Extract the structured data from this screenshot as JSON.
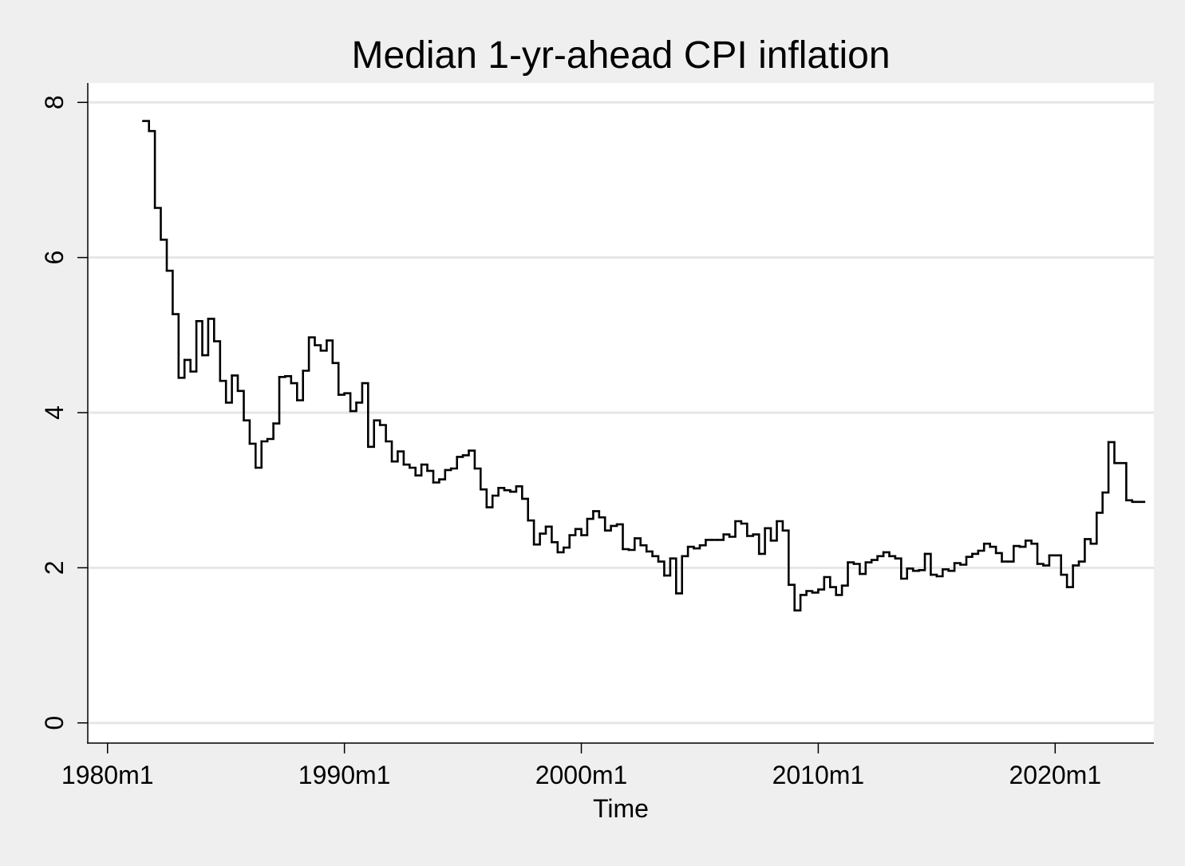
{
  "chart_data": {
    "type": "line",
    "title": "Median 1-yr-ahead CPI inflation",
    "xlabel": "Time",
    "ylabel": "",
    "x_ticks": [
      "1980m1",
      "1990m1",
      "2000m1",
      "2010m1",
      "2020m1"
    ],
    "y_ticks": [
      "0",
      "2",
      "4",
      "6",
      "8"
    ],
    "xlim": [
      "1979m3",
      "2024m3"
    ],
    "ylim": [
      -0.25,
      8.25
    ],
    "grid": "horizontal",
    "line_style": "step",
    "series": [
      {
        "color": "#000000",
        "points": [
          [
            "1981m7",
            7.76
          ],
          [
            "1981m10",
            7.63
          ],
          [
            "1982m1",
            6.64
          ],
          [
            "1982m4",
            6.23
          ],
          [
            "1982m7",
            5.83
          ],
          [
            "1982m10",
            5.27
          ],
          [
            "1983m1",
            4.45
          ],
          [
            "1983m4",
            4.68
          ],
          [
            "1983m7",
            4.53
          ],
          [
            "1983m10",
            5.18
          ],
          [
            "1984m1",
            4.74
          ],
          [
            "1984m4",
            5.21
          ],
          [
            "1984m7",
            4.92
          ],
          [
            "1984m10",
            4.41
          ],
          [
            "1985m1",
            4.13
          ],
          [
            "1985m4",
            4.48
          ],
          [
            "1985m7",
            4.28
          ],
          [
            "1985m10",
            3.9
          ],
          [
            "1986m1",
            3.6
          ],
          [
            "1986m4",
            3.29
          ],
          [
            "1986m7",
            3.63
          ],
          [
            "1986m10",
            3.66
          ],
          [
            "1987m1",
            3.86
          ],
          [
            "1987m4",
            4.46
          ],
          [
            "1987m7",
            4.47
          ],
          [
            "1987m10",
            4.38
          ],
          [
            "1988m1",
            4.16
          ],
          [
            "1988m4",
            4.54
          ],
          [
            "1988m7",
            4.97
          ],
          [
            "1988m10",
            4.87
          ],
          [
            "1989m1",
            4.8
          ],
          [
            "1989m4",
            4.93
          ],
          [
            "1989m7",
            4.64
          ],
          [
            "1989m10",
            4.23
          ],
          [
            "1990m1",
            4.25
          ],
          [
            "1990m4",
            4.02
          ],
          [
            "1990m7",
            4.13
          ],
          [
            "1990m10",
            4.38
          ],
          [
            "1991m1",
            3.56
          ],
          [
            "1991m4",
            3.9
          ],
          [
            "1991m7",
            3.84
          ],
          [
            "1991m10",
            3.63
          ],
          [
            "1992m1",
            3.37
          ],
          [
            "1992m4",
            3.5
          ],
          [
            "1992m7",
            3.33
          ],
          [
            "1992m10",
            3.29
          ],
          [
            "1993m1",
            3.19
          ],
          [
            "1993m4",
            3.33
          ],
          [
            "1993m7",
            3.25
          ],
          [
            "1993m10",
            3.1
          ],
          [
            "1994m1",
            3.14
          ],
          [
            "1994m4",
            3.26
          ],
          [
            "1994m7",
            3.28
          ],
          [
            "1994m10",
            3.43
          ],
          [
            "1995m1",
            3.45
          ],
          [
            "1995m4",
            3.51
          ],
          [
            "1995m7",
            3.28
          ],
          [
            "1995m10",
            3.01
          ],
          [
            "1996m1",
            2.78
          ],
          [
            "1996m4",
            2.93
          ],
          [
            "1996m7",
            3.03
          ],
          [
            "1996m10",
            3.0
          ],
          [
            "1997m1",
            2.98
          ],
          [
            "1997m4",
            3.05
          ],
          [
            "1997m7",
            2.89
          ],
          [
            "1997m10",
            2.61
          ],
          [
            "1998m1",
            2.3
          ],
          [
            "1998m4",
            2.44
          ],
          [
            "1998m7",
            2.53
          ],
          [
            "1998m10",
            2.33
          ],
          [
            "1999m1",
            2.2
          ],
          [
            "1999m4",
            2.26
          ],
          [
            "1999m7",
            2.42
          ],
          [
            "1999m10",
            2.5
          ],
          [
            "2000m1",
            2.42
          ],
          [
            "2000m4",
            2.63
          ],
          [
            "2000m7",
            2.73
          ],
          [
            "2000m10",
            2.65
          ],
          [
            "2001m1",
            2.48
          ],
          [
            "2001m4",
            2.54
          ],
          [
            "2001m7",
            2.56
          ],
          [
            "2001m10",
            2.24
          ],
          [
            "2002m1",
            2.23
          ],
          [
            "2002m4",
            2.38
          ],
          [
            "2002m7",
            2.29
          ],
          [
            "2002m10",
            2.21
          ],
          [
            "2003m1",
            2.15
          ],
          [
            "2003m4",
            2.08
          ],
          [
            "2003m7",
            1.9
          ],
          [
            "2003m10",
            2.12
          ],
          [
            "2004m1",
            1.67
          ],
          [
            "2004m4",
            2.15
          ],
          [
            "2004m7",
            2.27
          ],
          [
            "2004m10",
            2.25
          ],
          [
            "2005m1",
            2.29
          ],
          [
            "2005m4",
            2.36
          ],
          [
            "2005m7",
            2.36
          ],
          [
            "2005m10",
            2.36
          ],
          [
            "2006m1",
            2.43
          ],
          [
            "2006m4",
            2.4
          ],
          [
            "2006m7",
            2.6
          ],
          [
            "2006m10",
            2.57
          ],
          [
            "2007m1",
            2.41
          ],
          [
            "2007m4",
            2.43
          ],
          [
            "2007m7",
            2.18
          ],
          [
            "2007m10",
            2.51
          ],
          [
            "2008m1",
            2.35
          ],
          [
            "2008m4",
            2.6
          ],
          [
            "2008m7",
            2.48
          ],
          [
            "2008m10",
            1.78
          ],
          [
            "2009m1",
            1.45
          ],
          [
            "2009m4",
            1.65
          ],
          [
            "2009m7",
            1.7
          ],
          [
            "2009m10",
            1.68
          ],
          [
            "2010m1",
            1.72
          ],
          [
            "2010m4",
            1.88
          ],
          [
            "2010m7",
            1.75
          ],
          [
            "2010m10",
            1.65
          ],
          [
            "2011m1",
            1.77
          ],
          [
            "2011m4",
            2.07
          ],
          [
            "2011m7",
            2.05
          ],
          [
            "2011m10",
            1.92
          ],
          [
            "2012m1",
            2.07
          ],
          [
            "2012m4",
            2.1
          ],
          [
            "2012m7",
            2.15
          ],
          [
            "2012m10",
            2.2
          ],
          [
            "2013m1",
            2.15
          ],
          [
            "2013m4",
            2.12
          ],
          [
            "2013m7",
            1.86
          ],
          [
            "2013m10",
            1.99
          ],
          [
            "2014m1",
            1.96
          ],
          [
            "2014m4",
            1.97
          ],
          [
            "2014m7",
            2.18
          ],
          [
            "2014m10",
            1.91
          ],
          [
            "2015m1",
            1.89
          ],
          [
            "2015m4",
            1.98
          ],
          [
            "2015m7",
            1.96
          ],
          [
            "2015m10",
            2.06
          ],
          [
            "2016m1",
            2.04
          ],
          [
            "2016m4",
            2.14
          ],
          [
            "2016m7",
            2.18
          ],
          [
            "2016m10",
            2.22
          ],
          [
            "2017m1",
            2.31
          ],
          [
            "2017m4",
            2.27
          ],
          [
            "2017m7",
            2.19
          ],
          [
            "2017m10",
            2.08
          ],
          [
            "2018m1",
            2.08
          ],
          [
            "2018m4",
            2.28
          ],
          [
            "2018m7",
            2.27
          ],
          [
            "2018m10",
            2.35
          ],
          [
            "2019m1",
            2.31
          ],
          [
            "2019m4",
            2.05
          ],
          [
            "2019m7",
            2.03
          ],
          [
            "2019m10",
            2.16
          ],
          [
            "2020m1",
            2.16
          ],
          [
            "2020m4",
            1.91
          ],
          [
            "2020m7",
            1.75
          ],
          [
            "2020m10",
            2.03
          ],
          [
            "2021m1",
            2.08
          ],
          [
            "2021m4",
            2.37
          ],
          [
            "2021m7",
            2.31
          ],
          [
            "2021m10",
            2.71
          ],
          [
            "2022m1",
            2.97
          ],
          [
            "2022m4",
            3.62
          ],
          [
            "2022m7",
            3.35
          ],
          [
            "2022m10",
            3.35
          ],
          [
            "2023m1",
            2.87
          ],
          [
            "2023m4",
            2.85
          ],
          [
            "2023m7",
            2.85
          ]
        ]
      }
    ]
  }
}
